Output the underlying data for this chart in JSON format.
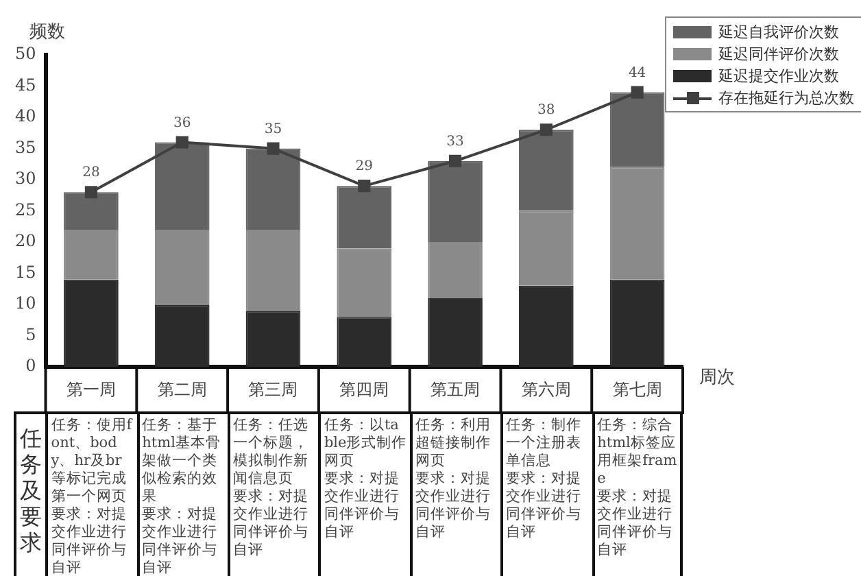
{
  "chart_data": {
    "type": "bar",
    "xlabel": "周次",
    "ylabel": "频数",
    "stacked": true,
    "grid": false,
    "legend": "top right",
    "marker": "square",
    "categories": [
      "第一周",
      "第二周",
      "第三周",
      "第四周",
      "第五周",
      "第六周",
      "第七周"
    ],
    "series": [
      {
        "name": "延迟提交作业次数",
        "color": "#2b2b2b",
        "values": [
          14,
          10,
          9,
          8,
          11,
          13,
          14
        ]
      },
      {
        "name": "延迟同伴评价次数",
        "color": "#8a8a8a",
        "values": [
          8,
          12,
          13,
          11,
          9,
          12,
          18
        ]
      },
      {
        "name": "延迟自我评价次数",
        "color": "#636363",
        "values": [
          6,
          14,
          13,
          10,
          13,
          13,
          12
        ]
      },
      {
        "name": "存在拖延行为总次数",
        "type": "line",
        "color": "#404040",
        "values": [
          28,
          36,
          35,
          29,
          33,
          38,
          44
        ],
        "value_labels": [
          "28",
          "36",
          "35",
          "29",
          "33",
          "38",
          "44"
        ]
      }
    ],
    "ylim": [
      0,
      50
    ],
    "yticks": [
      0,
      5,
      10,
      15,
      20,
      25,
      30,
      35,
      40,
      45,
      50
    ],
    "annotations": [
      "任务及要求",
      "任务：使用font、body、hr及br等标记完成第一个网页",
      "要求：对提交作业进行同伴评价与自评",
      "任务：基于html基本骨架做一个类似检索的效果",
      "要求：对提交作业进行同伴评价与自评",
      "任务：任选一个标题，模拟制作新闻信息页",
      "要求：对提交作业进行同伴评价与自评",
      "任务：以table形式制作网页",
      "要求：对提交作业进行同伴评价与自评",
      "任务：利用超链接制作网页",
      "要求：对提交作业进行同伴评价与自评",
      "任务：制作一个注册表单信息",
      "要求：对提交作业进行同伴评价与自评",
      "任务：综合html标签应用框架frame",
      "要求：对提交作业进行同伴评价与自评"
    ]
  }
}
